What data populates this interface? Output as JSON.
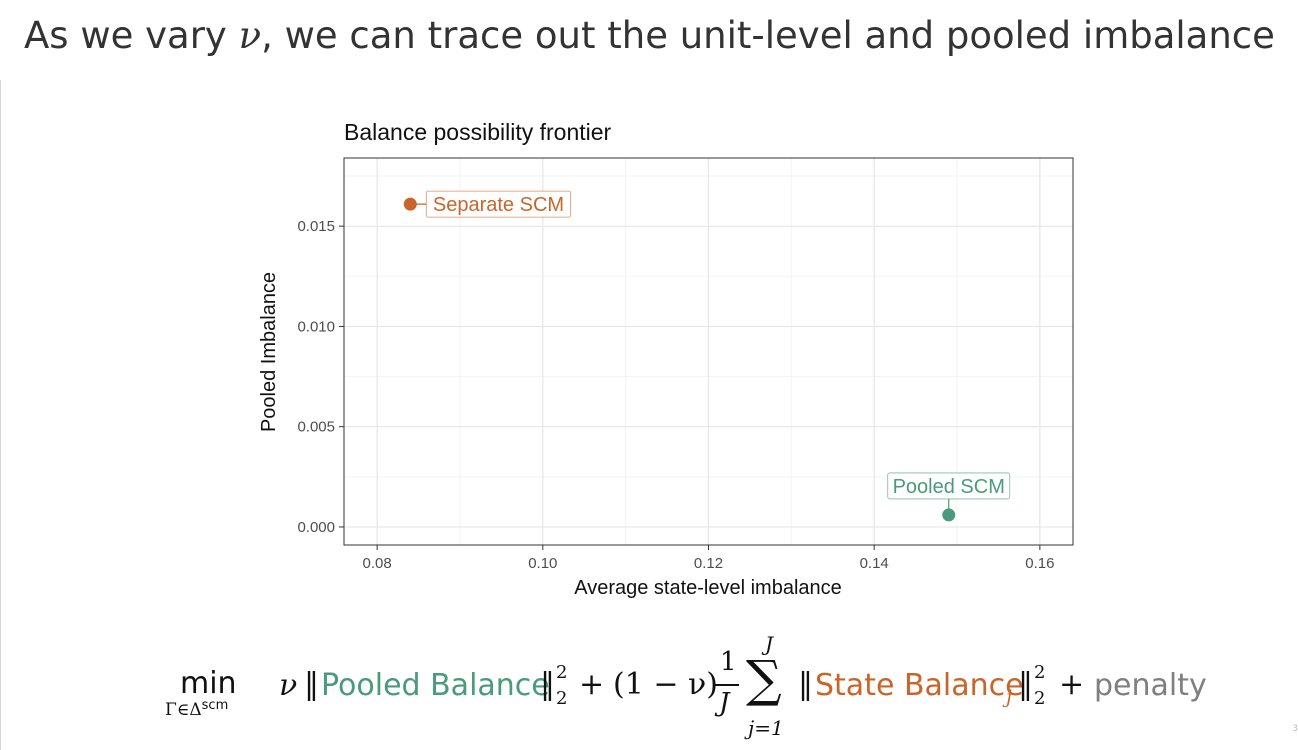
{
  "slide": {
    "title_before": "As we vary ",
    "title_symbol": "ν",
    "title_after": ", we can trace out the unit-level and pooled imbalance",
    "page_number": "3"
  },
  "colors": {
    "separate": "#c9652a",
    "pooled": "#4a9a7c",
    "penalty": "#7f7f7f",
    "text": "#333333"
  },
  "chart_data": {
    "type": "scatter",
    "title": "Balance possibility frontier",
    "xlabel": "Average state-level imbalance",
    "ylabel": "Pooled Imbalance",
    "xlim": [
      0.076,
      0.164
    ],
    "ylim": [
      -0.0009,
      0.0184
    ],
    "x_ticks": [
      "0.08",
      "0.10",
      "0.12",
      "0.14",
      "0.16"
    ],
    "y_ticks": [
      "0.000",
      "0.005",
      "0.010",
      "0.015"
    ],
    "x_tick_values": [
      0.08,
      0.1,
      0.12,
      0.14,
      0.16
    ],
    "y_tick_values": [
      0.0,
      0.005,
      0.01,
      0.015
    ],
    "grid": true,
    "points": [
      {
        "label": "Separate SCM",
        "x": 0.084,
        "y": 0.0161,
        "color": "#c9652a"
      },
      {
        "label": "Pooled SCM",
        "x": 0.149,
        "y": 0.0006,
        "color": "#4a9a7c"
      }
    ]
  },
  "formula": {
    "min_label": "min",
    "min_subscript_set": "Γ∈Δ",
    "min_subscript_sup": "scm",
    "nu": "ν",
    "pooled_term": "Pooled Balance",
    "state_term": "State Balance",
    "state_index": "j",
    "penalty_term": "penalty",
    "plus": "+",
    "one_minus_nu": "(1 − ν)",
    "frac_num": "1",
    "frac_den": "J",
    "sum_upper": "J",
    "sum_lower": "j=1",
    "norm_sub": "2",
    "norm_sup": "2"
  }
}
